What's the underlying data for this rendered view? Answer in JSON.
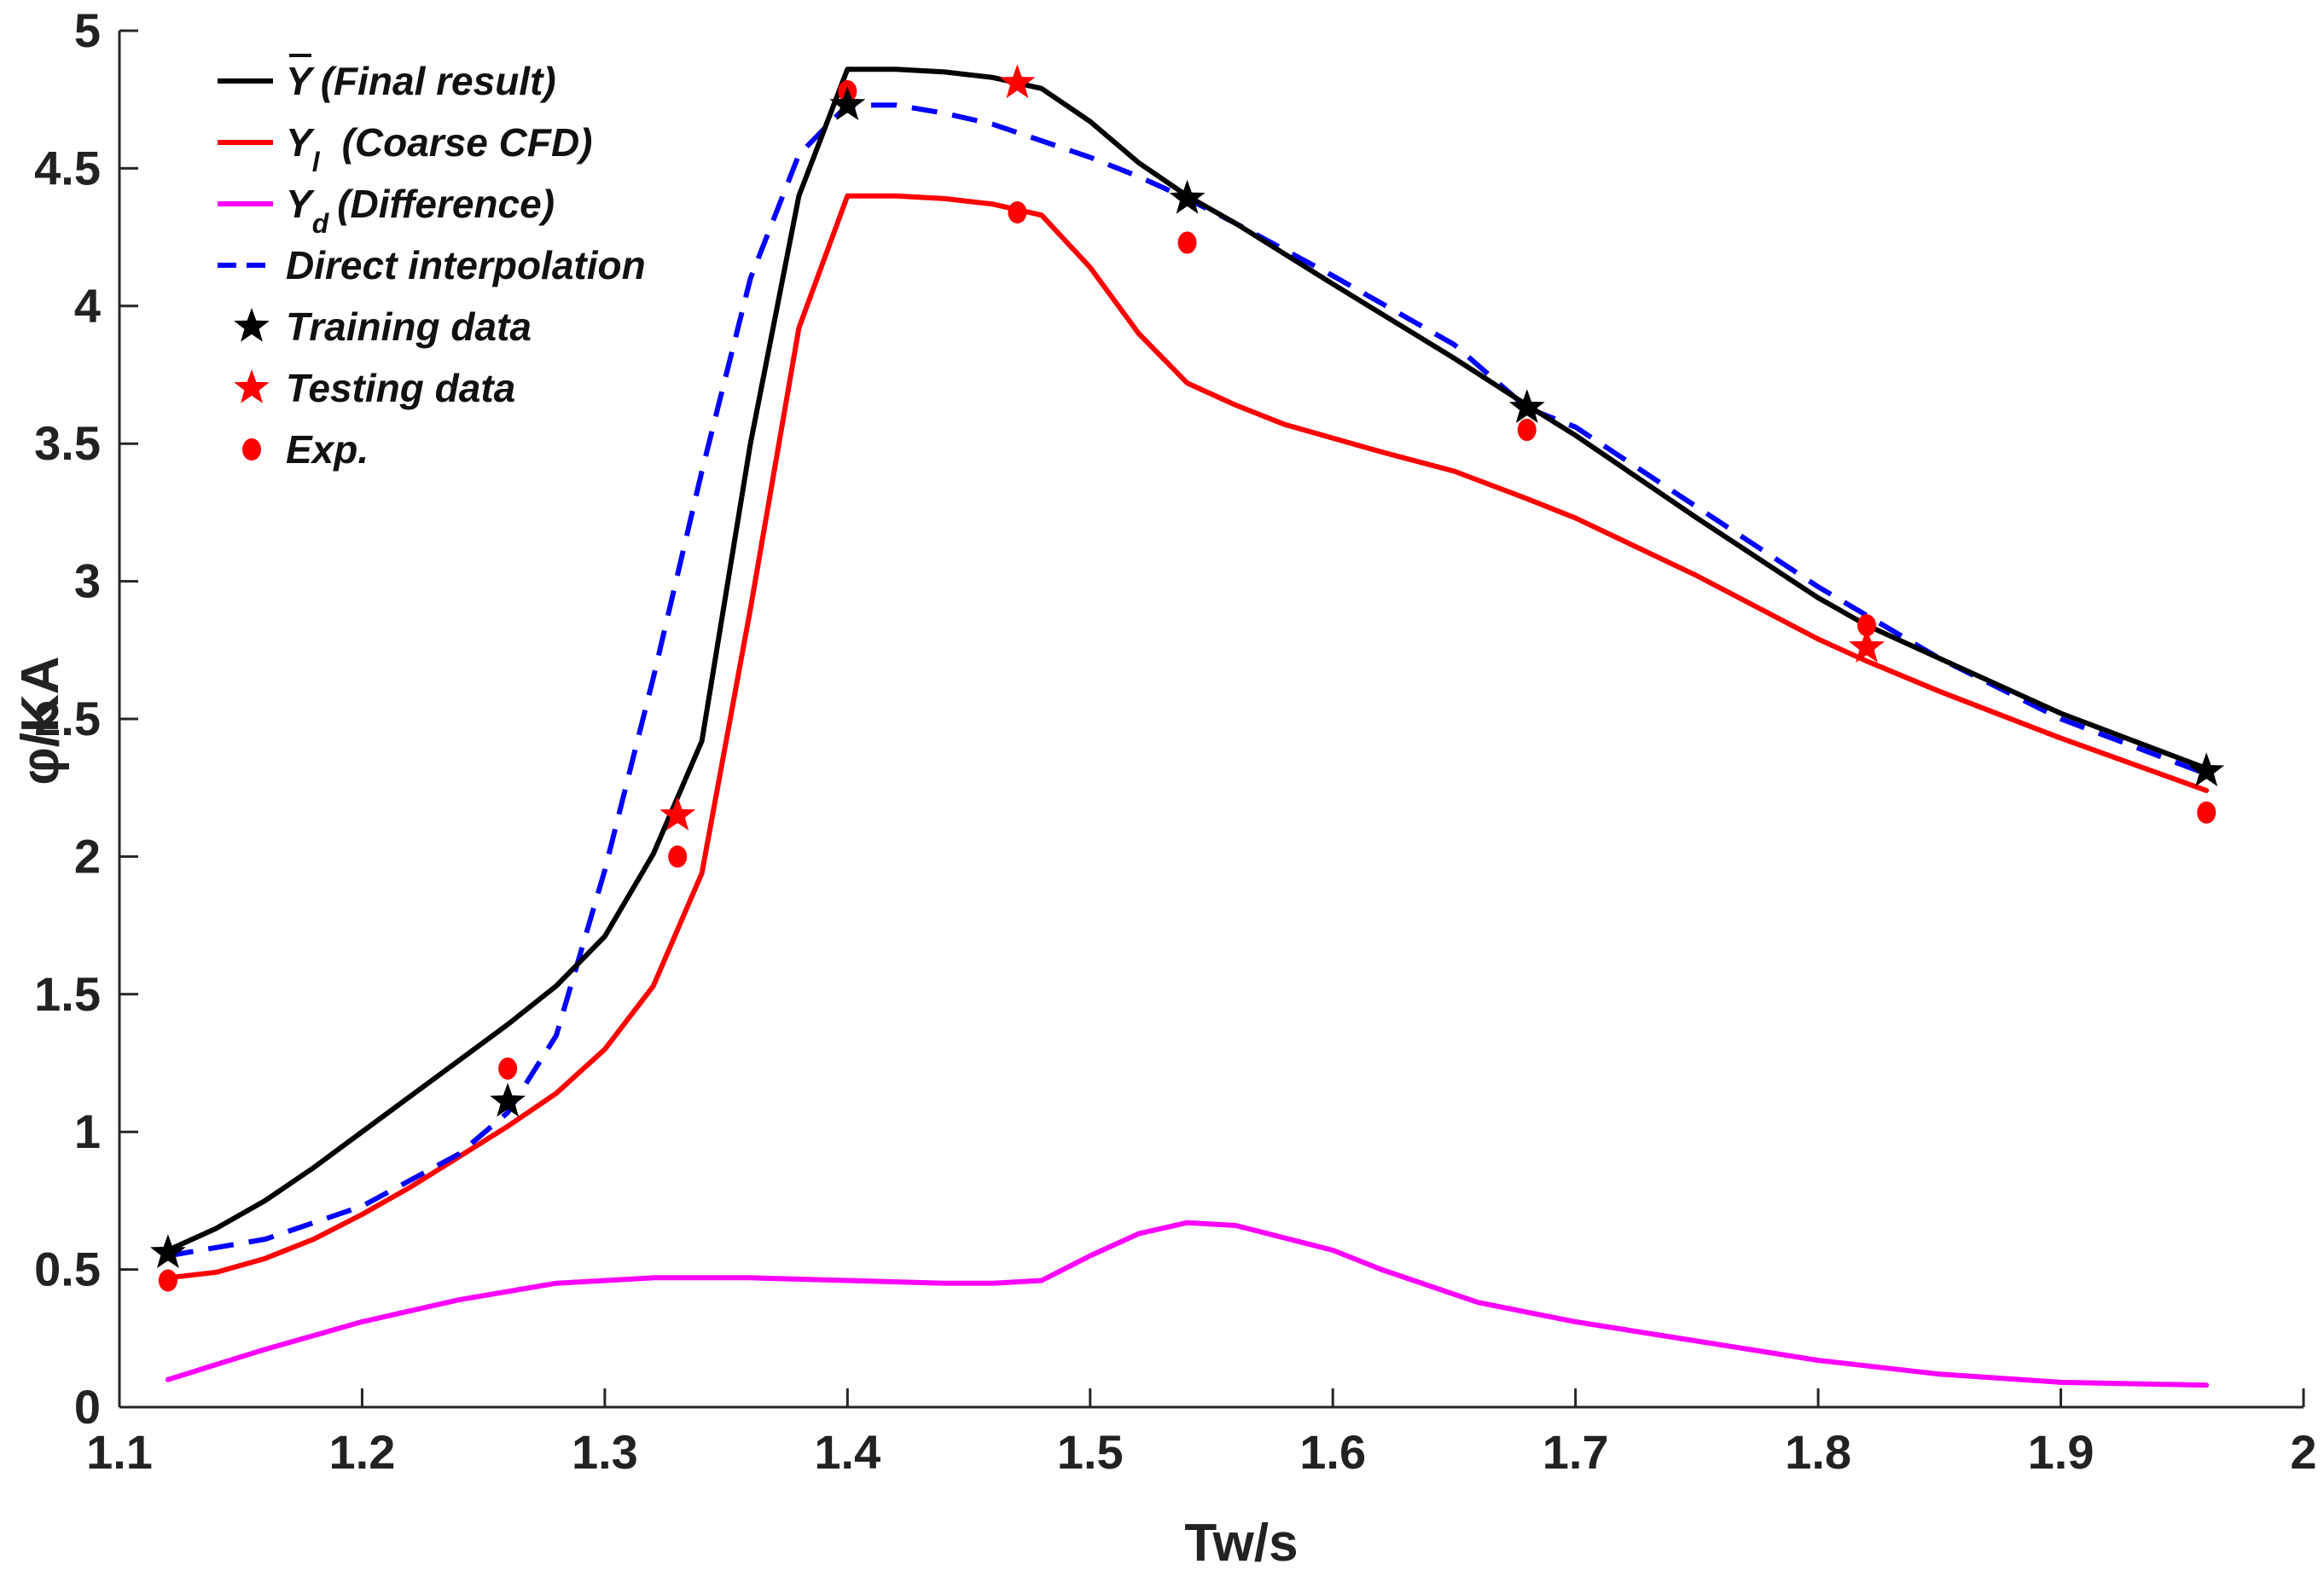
{
  "chart_data": {
    "type": "line",
    "xlabel": "Tw/s",
    "ylabel": "φ/KA",
    "xlim": [
      1.1,
      2.0
    ],
    "ylim": [
      0,
      5
    ],
    "xticks": [
      1.1,
      1.2,
      1.3,
      1.4,
      1.5,
      1.6,
      1.7,
      1.8,
      1.9,
      2.0
    ],
    "xtick_labels": [
      "1.1",
      "1.2",
      "1.3",
      "1.4",
      "1.5",
      "1.6",
      "1.7",
      "1.8",
      "1.9",
      "2"
    ],
    "yticks": [
      0,
      0.5,
      1,
      1.5,
      2,
      2.5,
      3,
      3.5,
      4,
      4.5,
      5
    ],
    "ytick_labels": [
      "0",
      "0.5",
      "1",
      "1.5",
      "2",
      "2.5",
      "3",
      "3.5",
      "4",
      "4.5",
      "5"
    ],
    "grid": false,
    "legend_position": "top-left",
    "legend": [
      {
        "key": "final",
        "symbol": "Y",
        "overbar": true,
        "sub": "",
        "text": "(Final result)",
        "style": "line",
        "color": "#000000"
      },
      {
        "key": "coarse",
        "symbol": "Y",
        "overbar": false,
        "sub": "l",
        "text": "(Coarse CFD)",
        "style": "line",
        "color": "#ff0000"
      },
      {
        "key": "diff",
        "symbol": "Y",
        "overbar": false,
        "sub": "d",
        "text": "(Difference)",
        "style": "line",
        "color": "#ff00ff"
      },
      {
        "key": "interp",
        "symbol": "",
        "overbar": false,
        "sub": "",
        "text": "Direct interpolation",
        "style": "dashed",
        "color": "#0000ff"
      },
      {
        "key": "train",
        "symbol": "",
        "overbar": false,
        "sub": "",
        "text": "Training data",
        "style": "star",
        "color": "#000000"
      },
      {
        "key": "test",
        "symbol": "",
        "overbar": false,
        "sub": "",
        "text": "Testing data",
        "style": "star",
        "color": "#ff0000"
      },
      {
        "key": "exp",
        "symbol": "",
        "overbar": false,
        "sub": "",
        "text": "Exp.",
        "style": "dot",
        "color": "#ff0000"
      }
    ],
    "series": [
      {
        "name": "Y (Final result)",
        "key": "final",
        "color": "#000000",
        "style": "solid",
        "x": [
          1.12,
          1.14,
          1.16,
          1.18,
          1.2,
          1.22,
          1.24,
          1.26,
          1.28,
          1.3,
          1.32,
          1.34,
          1.36,
          1.38,
          1.4,
          1.42,
          1.44,
          1.46,
          1.48,
          1.5,
          1.52,
          1.54,
          1.56,
          1.6,
          1.65,
          1.68,
          1.7,
          1.75,
          1.8,
          1.82,
          1.85,
          1.9,
          1.96
        ],
        "y": [
          0.57,
          0.65,
          0.75,
          0.87,
          1.0,
          1.13,
          1.26,
          1.39,
          1.53,
          1.71,
          2.01,
          2.42,
          3.5,
          4.4,
          4.86,
          4.86,
          4.85,
          4.83,
          4.79,
          4.67,
          4.52,
          4.4,
          4.3,
          4.08,
          3.81,
          3.64,
          3.53,
          3.23,
          2.94,
          2.84,
          2.72,
          2.52,
          2.32
        ]
      },
      {
        "name": "Yl (Coarse CFD)",
        "key": "coarse",
        "color": "#ff0000",
        "style": "solid",
        "x": [
          1.12,
          1.14,
          1.16,
          1.18,
          1.2,
          1.22,
          1.24,
          1.26,
          1.28,
          1.3,
          1.32,
          1.34,
          1.36,
          1.38,
          1.4,
          1.42,
          1.44,
          1.46,
          1.48,
          1.5,
          1.52,
          1.54,
          1.56,
          1.58,
          1.6,
          1.62,
          1.65,
          1.68,
          1.7,
          1.75,
          1.8,
          1.82,
          1.85,
          1.9,
          1.96
        ],
        "y": [
          0.47,
          0.49,
          0.54,
          0.61,
          0.7,
          0.8,
          0.91,
          1.02,
          1.14,
          1.3,
          1.53,
          1.94,
          2.9,
          3.92,
          4.4,
          4.4,
          4.39,
          4.37,
          4.33,
          4.14,
          3.9,
          3.72,
          3.64,
          3.57,
          3.52,
          3.47,
          3.4,
          3.3,
          3.23,
          3.02,
          2.79,
          2.71,
          2.6,
          2.43,
          2.24
        ]
      },
      {
        "name": "Yd (Difference)",
        "key": "diff",
        "color": "#ff00ff",
        "style": "solid",
        "x": [
          1.12,
          1.16,
          1.2,
          1.24,
          1.28,
          1.32,
          1.36,
          1.4,
          1.44,
          1.46,
          1.48,
          1.5,
          1.52,
          1.54,
          1.56,
          1.6,
          1.62,
          1.66,
          1.7,
          1.75,
          1.8,
          1.85,
          1.9,
          1.96
        ],
        "y": [
          0.1,
          0.21,
          0.31,
          0.39,
          0.45,
          0.47,
          0.47,
          0.46,
          0.45,
          0.45,
          0.46,
          0.55,
          0.63,
          0.67,
          0.66,
          0.57,
          0.5,
          0.38,
          0.31,
          0.24,
          0.17,
          0.12,
          0.09,
          0.08
        ]
      },
      {
        "name": "Direct interpolation",
        "key": "interp",
        "color": "#0000ff",
        "style": "dashed",
        "x": [
          1.12,
          1.16,
          1.2,
          1.24,
          1.26,
          1.28,
          1.3,
          1.32,
          1.34,
          1.36,
          1.38,
          1.4,
          1.42,
          1.44,
          1.46,
          1.48,
          1.5,
          1.52,
          1.54,
          1.56,
          1.6,
          1.65,
          1.68,
          1.7,
          1.75,
          1.8,
          1.85,
          1.9,
          1.96
        ],
        "y": [
          0.55,
          0.61,
          0.73,
          0.92,
          1.07,
          1.35,
          1.95,
          2.65,
          3.4,
          4.1,
          4.55,
          4.73,
          4.73,
          4.7,
          4.66,
          4.6,
          4.54,
          4.47,
          4.39,
          4.3,
          4.11,
          3.86,
          3.63,
          3.56,
          3.27,
          2.98,
          2.72,
          2.5,
          2.3
        ]
      }
    ],
    "points": [
      {
        "name": "Training data",
        "key": "train",
        "marker": "star",
        "color": "#000000",
        "x": [
          1.12,
          1.26,
          1.4,
          1.54,
          1.68,
          1.96
        ],
        "y": [
          0.56,
          1.11,
          4.73,
          4.39,
          3.63,
          2.31
        ]
      },
      {
        "name": "Testing data",
        "key": "test",
        "marker": "star",
        "color": "#ff0000",
        "x": [
          1.33,
          1.47,
          1.82
        ],
        "y": [
          2.15,
          4.81,
          2.76
        ]
      },
      {
        "name": "Exp.",
        "key": "exp",
        "marker": "dot",
        "color": "#ff0000",
        "x": [
          1.12,
          1.26,
          1.33,
          1.4,
          1.47,
          1.54,
          1.68,
          1.82,
          1.96
        ],
        "y": [
          0.46,
          1.23,
          2.0,
          4.78,
          4.34,
          4.23,
          3.55,
          2.84,
          2.16
        ]
      }
    ]
  }
}
